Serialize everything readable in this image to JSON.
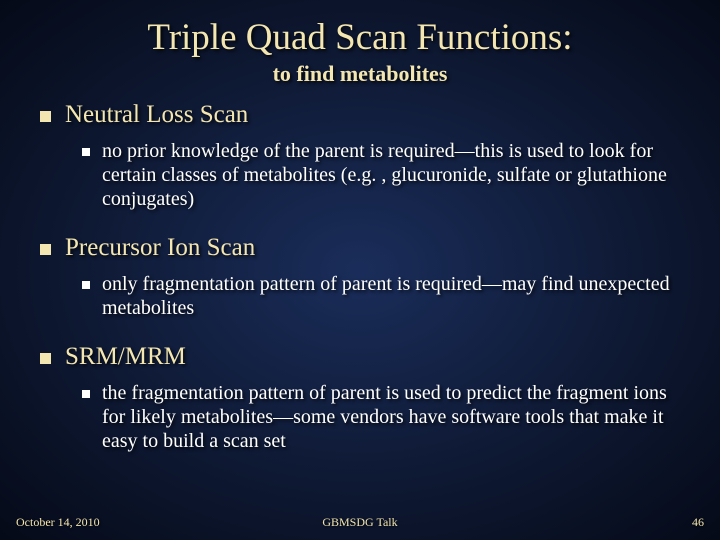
{
  "title": "Triple Quad Scan Functions:",
  "subtitle": "to find metabolites",
  "colors": {
    "title_color": "#f4e6b0",
    "body_color": "#ffffff",
    "bg_center": "#1a2d5a",
    "bg_edge": "#050a18",
    "bullet_l1": "#f4e6b0",
    "bullet_l2": "#ffffff"
  },
  "typography": {
    "title_fontsize": 37,
    "subtitle_fontsize": 22,
    "l1_fontsize": 25,
    "l2_fontsize": 20,
    "footer_fontsize": 12,
    "font_family": "Garamond"
  },
  "sections": [
    {
      "heading": "Neutral Loss Scan",
      "sub": "no prior knowledge of the parent is required—this is used to look for certain classes of metabolites (e.g. , glucuronide, sulfate or glutathione conjugates)"
    },
    {
      "heading": "Precursor Ion Scan",
      "sub": "only fragmentation pattern of parent is required—may find unexpected metabolites"
    },
    {
      "heading": "SRM/MRM",
      "sub": "the fragmentation pattern of parent is used to predict the fragment ions for likely metabolites—some vendors have software tools that make it easy to build a scan set"
    }
  ],
  "footer": {
    "date": "October 14, 2010",
    "center": "GBMSDG Talk",
    "page": "46"
  }
}
